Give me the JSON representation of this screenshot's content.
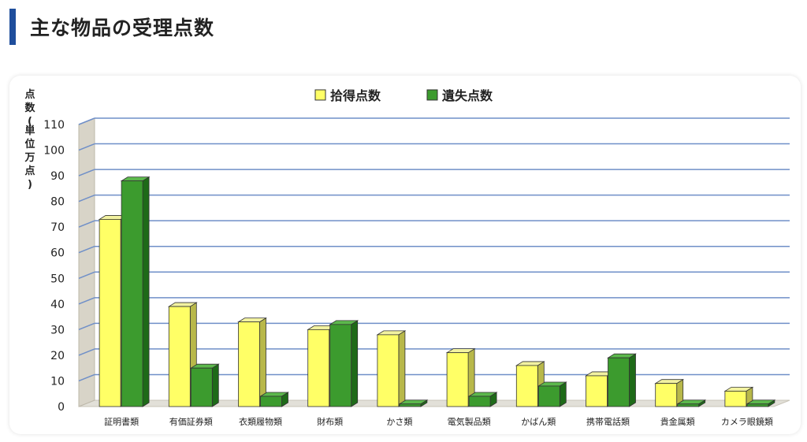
{
  "page": {
    "title": "主な物品の受理点数"
  },
  "chart_data": {
    "type": "bar",
    "title": "",
    "xlabel": "",
    "ylabel": "点数(単位万点)",
    "ylim": [
      0,
      110
    ],
    "yticks": [
      0,
      10,
      20,
      30,
      40,
      50,
      60,
      70,
      80,
      90,
      100,
      110
    ],
    "grid": true,
    "legend_position": "top-center",
    "categories": [
      "証明書類",
      "有価証券類",
      "衣類履物類",
      "財布類",
      "かさ類",
      "電気製品類",
      "かばん類",
      "携帯電話類",
      "貴金属類",
      "カメラ眼鏡類"
    ],
    "series": [
      {
        "name": "拾得点数",
        "color": "#ffff66",
        "values": [
          73,
          39,
          33,
          30,
          28,
          21,
          16,
          12,
          9,
          6
        ]
      },
      {
        "name": "遺失点数",
        "color": "#3c9b2e",
        "values": [
          88,
          15,
          4,
          32,
          1,
          4,
          8,
          19,
          1,
          1
        ]
      }
    ]
  }
}
